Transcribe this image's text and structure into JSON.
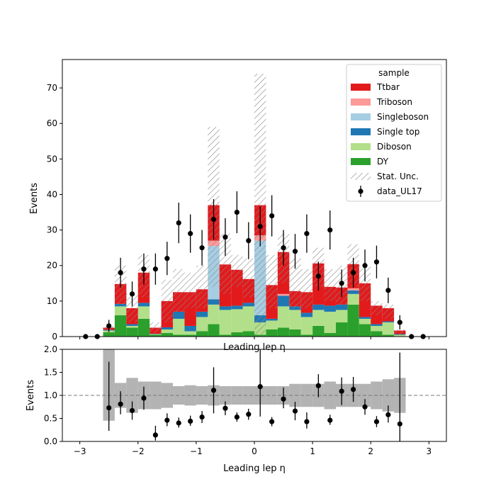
{
  "chart_data": [
    {
      "type": "bar",
      "subtype": "stacked-step-histogram",
      "title": "",
      "xlabel": "Leading lep η",
      "ylabel": "Events",
      "xlim": [
        -3.3,
        3.3
      ],
      "ylim": [
        0,
        78
      ],
      "x_ticks": [
        -3,
        -2,
        -1,
        0,
        1,
        2,
        3
      ],
      "y_ticks": [
        0,
        10,
        20,
        30,
        40,
        50,
        60,
        70
      ],
      "grid": false,
      "legend": {
        "title": "sample",
        "position": "upper right",
        "entries": [
          "Ttbar",
          "Triboson",
          "Singleboson",
          "Single top",
          "Diboson",
          "DY",
          "Stat. Unc.",
          "data_UL17"
        ]
      },
      "bin_edges": [
        -2.6,
        -2.4,
        -2.2,
        -2.0,
        -1.8,
        -1.6,
        -1.4,
        -1.2,
        -1.0,
        -0.8,
        -0.6,
        -0.4,
        -0.2,
        0.0,
        0.2,
        0.4,
        0.6,
        0.8,
        1.0,
        1.2,
        1.4,
        1.6,
        1.8,
        2.0,
        2.2,
        2.4,
        2.6
      ],
      "series": [
        {
          "name": "DY",
          "color": "#2ca02c",
          "values": [
            1.2,
            6,
            2.5,
            5,
            0.5,
            1,
            0.5,
            0.5,
            1.5,
            3.5,
            0.5,
            1.2,
            1.5,
            0.5,
            2,
            2.5,
            2,
            0.5,
            3,
            1,
            4,
            9,
            3.5,
            1.5,
            0.5,
            0
          ]
        },
        {
          "name": "Diboson",
          "color": "#b2df8a",
          "values": [
            0.5,
            2.5,
            0.5,
            3.5,
            0.2,
            1,
            4.5,
            1,
            4,
            5.5,
            7,
            6.5,
            7,
            3.5,
            2.5,
            6,
            5.5,
            5,
            4.5,
            6,
            3.5,
            3,
            1.5,
            1.5,
            3.5,
            0.5
          ]
        },
        {
          "name": "Single top",
          "color": "#1f78b4",
          "values": [
            0.2,
            0.7,
            0.5,
            1,
            0.1,
            0.6,
            2,
            1.5,
            1.5,
            1.5,
            1,
            1,
            1,
            2,
            0.5,
            3,
            1,
            1.2,
            1.5,
            1.7,
            1.5,
            1,
            0.5,
            0.5,
            0.3,
            0.2
          ]
        },
        {
          "name": "Singleboson",
          "color": "#a6cee3",
          "values": [
            0,
            0,
            0,
            0,
            0,
            0,
            0,
            0,
            0,
            15,
            0,
            0,
            0,
            21,
            0,
            0,
            0,
            0,
            0,
            0,
            0,
            0,
            0,
            0,
            0,
            0
          ]
        },
        {
          "name": "Triboson",
          "color": "#fb9a99",
          "values": [
            0,
            0,
            0,
            0,
            0,
            0,
            0,
            0,
            0,
            1.5,
            0,
            0,
            0,
            1.5,
            0,
            0.5,
            0,
            0,
            0,
            0,
            0,
            0.6,
            0,
            0,
            0,
            0
          ]
        },
        {
          "name": "Ttbar",
          "color": "#e31a1c",
          "values": [
            0.6,
            5.6,
            4.5,
            8.5,
            1.7,
            7.4,
            5.5,
            9.5,
            6.3,
            10,
            11.8,
            10.1,
            6.7,
            8.5,
            9.5,
            11.8,
            4.3,
            5.8,
            11.6,
            5.3,
            4.8,
            6.8,
            9.5,
            5.2,
            3.7,
            1
          ]
        }
      ],
      "stat_unc_high": [
        3,
        20,
        12,
        23,
        4,
        16,
        19,
        18,
        20,
        59,
        29,
        23,
        22,
        74,
        23,
        29,
        22,
        19,
        25,
        19,
        20,
        26,
        20,
        10,
        9,
        2
      ],
      "stat_unc_low": [
        1,
        9,
        4,
        11,
        1,
        4,
        7,
        8,
        8,
        14,
        12,
        14,
        11,
        0,
        8,
        15,
        8,
        8,
        14,
        10,
        9,
        14,
        10,
        6,
        5,
        0.5
      ],
      "data": {
        "name": "data_UL17",
        "x": [
          -2.9,
          -2.7,
          -2.5,
          -2.3,
          -2.1,
          -1.9,
          -1.7,
          -1.5,
          -1.3,
          -1.1,
          -0.9,
          -0.7,
          -0.5,
          -0.3,
          -0.1,
          0.1,
          0.3,
          0.5,
          0.7,
          0.9,
          1.1,
          1.3,
          1.5,
          1.7,
          1.9,
          2.1,
          2.3,
          2.5,
          2.7,
          2.9
        ],
        "y": [
          0,
          0,
          3,
          18,
          12,
          19,
          19,
          22,
          32,
          29,
          25,
          33,
          28,
          35,
          27,
          31,
          34,
          25,
          24,
          29,
          17,
          30,
          15,
          18,
          20,
          21,
          13,
          4,
          0,
          0
        ],
        "err": [
          0,
          0,
          1.7,
          4.2,
          3.5,
          4.4,
          4.4,
          4.7,
          5.7,
          5.4,
          5,
          5.7,
          5.3,
          5.9,
          5.2,
          5.6,
          5.8,
          5,
          4.9,
          5.4,
          4.1,
          5.5,
          3.9,
          4.2,
          4.5,
          4.6,
          3.6,
          2,
          0,
          0
        ]
      }
    },
    {
      "type": "scatter",
      "subtype": "ratio",
      "title": "",
      "xlabel": "Leading lep η",
      "ylabel": "Events",
      "xlim": [
        -3.3,
        3.3
      ],
      "ylim": [
        0,
        2
      ],
      "x_ticks": [
        -3,
        -2,
        -1,
        0,
        1,
        2,
        3
      ],
      "y_ticks": [
        0.0,
        0.5,
        1.0,
        1.5,
        2.0
      ],
      "grid": false,
      "reference_line": 1,
      "band_high": [
        2,
        1.27,
        1.38,
        1.3,
        1.3,
        1.27,
        1.2,
        1.22,
        1.2,
        1.22,
        1.2,
        1.2,
        1.2,
        1.2,
        1.2,
        1.2,
        1.25,
        1.25,
        1.25,
        1.3,
        1.25,
        1.25,
        1.25,
        1.3,
        1.35,
        1.38
      ],
      "band_low": [
        0.45,
        0.73,
        0.62,
        0.7,
        0.7,
        0.73,
        0.8,
        0.78,
        0.8,
        0.78,
        0.8,
        0.8,
        0.8,
        0.8,
        0.8,
        0.8,
        0.75,
        0.75,
        0.75,
        0.7,
        0.75,
        0.75,
        0.75,
        0.7,
        0.65,
        0.62
      ],
      "points": {
        "x": [
          -2.5,
          -2.3,
          -2.1,
          -1.9,
          -1.7,
          -1.5,
          -1.3,
          -1.1,
          -0.9,
          -0.7,
          -0.5,
          -0.3,
          -0.1,
          0.1,
          0.3,
          0.5,
          0.7,
          0.9,
          1.1,
          1.3,
          1.5,
          1.7,
          1.9,
          2.1,
          2.3,
          2.5
        ],
        "y": [
          0.73,
          0.81,
          0.67,
          0.94,
          0.14,
          0.46,
          0.4,
          0.44,
          0.53,
          1.11,
          0.72,
          0.53,
          0.59,
          1.19,
          0.43,
          0.92,
          0.66,
          0.43,
          1.21,
          0.46,
          1.09,
          1.13,
          0.75,
          0.43,
          0.58,
          0.38
        ],
        "err_low": [
          0.5,
          0.22,
          0.2,
          0.25,
          0.12,
          0.13,
          0.1,
          0.1,
          0.13,
          0.5,
          0.15,
          0.1,
          0.12,
          0.65,
          0.1,
          0.2,
          0.2,
          0.15,
          0.25,
          0.1,
          0.3,
          0.27,
          0.17,
          0.12,
          0.17,
          0.38
        ],
        "err_high": [
          1.0,
          0.28,
          0.2,
          0.25,
          0.2,
          0.15,
          0.12,
          0.12,
          0.13,
          0.5,
          0.15,
          0.1,
          0.12,
          0.81,
          0.1,
          0.25,
          0.2,
          0.2,
          0.25,
          0.12,
          0.3,
          0.27,
          0.17,
          0.12,
          0.2,
          1.55
        ]
      }
    }
  ]
}
